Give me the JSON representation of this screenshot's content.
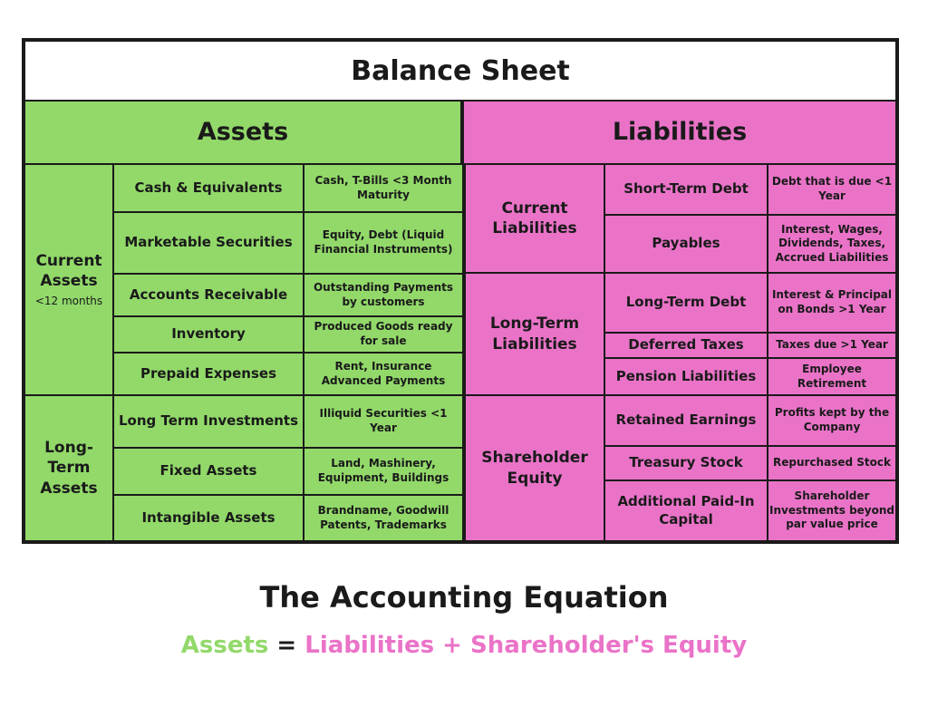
{
  "title": "Balance Sheet",
  "assets": {
    "header": "Assets",
    "current": {
      "label": "Current Assets",
      "sublabel": "<12 months",
      "rows": [
        {
          "item": "Cash & Equivalents",
          "desc": "Cash, T-Bills <3 Month Maturity"
        },
        {
          "item": "Marketable Securities",
          "desc": "Equity, Debt (Liquid Financial Instruments)"
        },
        {
          "item": "Accounts Receivable",
          "desc": "Outstanding Payments by customers"
        },
        {
          "item": "Inventory",
          "desc": "Produced Goods ready for sale"
        },
        {
          "item": "Prepaid Expenses",
          "desc": "Rent, Insurance Advanced Payments"
        }
      ]
    },
    "longterm": {
      "label": "Long-Term Assets",
      "rows": [
        {
          "item": "Long Term Investments",
          "desc": "Illiquid Securities <1 Year"
        },
        {
          "item": "Fixed Assets",
          "desc": "Land, Mashinery, Equipment, Buildings"
        },
        {
          "item": "Intangible Assets",
          "desc": "Brandname, Goodwill Patents, Trademarks"
        }
      ]
    }
  },
  "liabilities": {
    "header": "Liabilities",
    "current": {
      "label": "Current Liabilities",
      "rows": [
        {
          "item": "Short-Term Debt",
          "desc": "Debt that is due <1 Year"
        },
        {
          "item": "Payables",
          "desc": "Interest, Wages, Dividends, Taxes, Accrued Liabilities"
        }
      ]
    },
    "longterm": {
      "label": "Long-Term Liabilities",
      "rows": [
        {
          "item": "Long-Term Debt",
          "desc": "Interest & Principal on Bonds >1 Year"
        },
        {
          "item": "Deferred Taxes",
          "desc": "Taxes due >1 Year"
        },
        {
          "item": "Pension Liabilities",
          "desc": "Employee Retirement"
        }
      ]
    },
    "equity": {
      "label": "Shareholder Equity",
      "rows": [
        {
          "item": "Retained Earnings",
          "desc": "Profits kept by the Company"
        },
        {
          "item": "Treasury Stock",
          "desc": "Repurchased Stock"
        },
        {
          "item": "Additional Paid-In Capital",
          "desc": "Shareholder Investments beyond par value price"
        }
      ]
    }
  },
  "equation": {
    "title": "The Accounting Equation",
    "assets": "Assets",
    "equals": " = ",
    "rest": "Liabilities + Shareholder's Equity"
  },
  "colors": {
    "assets_green": "#92d96a",
    "liabilities_pink": "#ea73c8",
    "border": "#1a1a1a"
  }
}
